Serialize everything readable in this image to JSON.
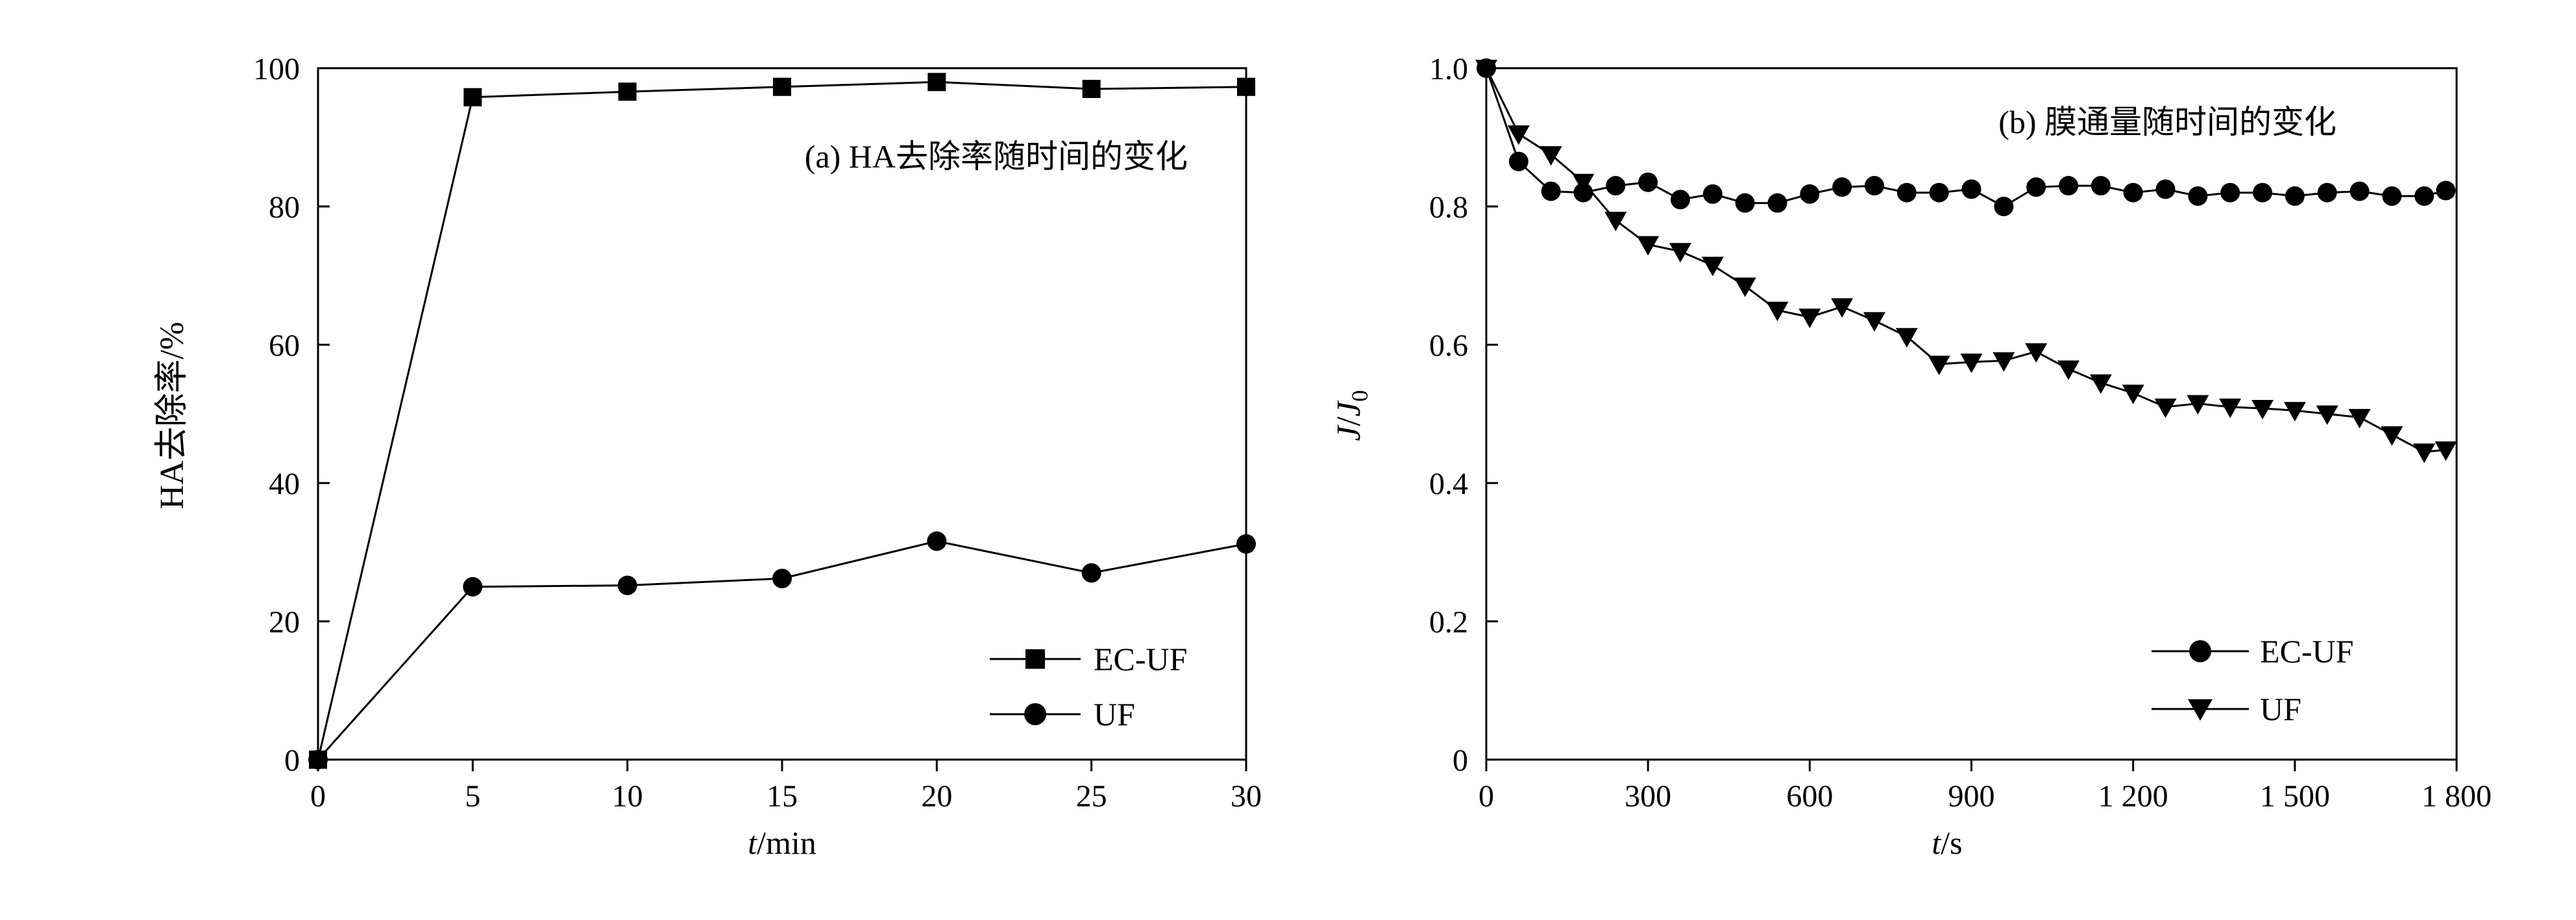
{
  "chart_data": [
    {
      "type": "line",
      "title": "(a) HA去除率随时间的变化",
      "xlabel_italic": "t",
      "xlabel_unit": "/min",
      "ylabel": "HA去除率/%",
      "xlim": [
        0,
        30
      ],
      "ylim": [
        0,
        100
      ],
      "xticks": [
        0,
        5,
        10,
        15,
        20,
        25,
        30
      ],
      "yticks": [
        0,
        20,
        40,
        60,
        80,
        100
      ],
      "xtick_labels": [
        "0",
        "5",
        "10",
        "15",
        "20",
        "25",
        "30"
      ],
      "ytick_labels": [
        "0",
        "20",
        "40",
        "60",
        "80",
        "100"
      ],
      "grid": false,
      "legend_position": "bottom-right",
      "series": [
        {
          "name": "EC-UF",
          "marker": "square",
          "x": [
            0,
            5,
            10,
            15,
            20,
            25,
            30
          ],
          "y": [
            0,
            95.8,
            96.6,
            97.3,
            98.0,
            97.0,
            97.3
          ]
        },
        {
          "name": "UF",
          "marker": "circle",
          "x": [
            0,
            5,
            10,
            15,
            20,
            25,
            30
          ],
          "y": [
            0,
            25.0,
            25.2,
            26.2,
            31.6,
            27.0,
            31.2
          ]
        }
      ]
    },
    {
      "type": "line",
      "title": "(b) 膜通量随时间的变化",
      "xlabel_italic": "t",
      "xlabel_unit": "/s",
      "ylabel_italic": "J",
      "ylabel_sep": "/",
      "ylabel_sub_base": "J",
      "ylabel_sub": "0",
      "xlim": [
        0,
        1800
      ],
      "ylim": [
        0,
        1.0
      ],
      "xticks": [
        0,
        300,
        600,
        900,
        1200,
        1500,
        1800
      ],
      "yticks": [
        0,
        0.2,
        0.4,
        0.6,
        0.8,
        1.0
      ],
      "xtick_labels": [
        "0",
        "300",
        "600",
        "900",
        "1 200",
        "1 500",
        "1 800"
      ],
      "ytick_labels": [
        "0",
        "0.2",
        "0.4",
        "0.6",
        "0.8",
        "1.0"
      ],
      "grid": false,
      "legend_position": "bottom-right",
      "series": [
        {
          "name": "EC-UF",
          "marker": "circle",
          "x": [
            0,
            60,
            120,
            180,
            240,
            300,
            360,
            420,
            480,
            540,
            600,
            660,
            720,
            780,
            840,
            900,
            960,
            1020,
            1080,
            1140,
            1200,
            1260,
            1320,
            1380,
            1440,
            1500,
            1560,
            1620,
            1680,
            1740,
            1780
          ],
          "y": [
            1.0,
            0.865,
            0.822,
            0.82,
            0.83,
            0.835,
            0.81,
            0.818,
            0.805,
            0.805,
            0.818,
            0.828,
            0.83,
            0.82,
            0.82,
            0.825,
            0.8,
            0.828,
            0.83,
            0.83,
            0.82,
            0.825,
            0.815,
            0.82,
            0.82,
            0.815,
            0.82,
            0.822,
            0.815,
            0.815,
            0.823
          ]
        },
        {
          "name": "UF",
          "marker": "triangle-down",
          "x": [
            0,
            60,
            120,
            180,
            240,
            300,
            360,
            420,
            480,
            540,
            600,
            660,
            720,
            780,
            840,
            900,
            960,
            1020,
            1080,
            1140,
            1200,
            1260,
            1320,
            1380,
            1440,
            1500,
            1560,
            1620,
            1680,
            1740,
            1780
          ],
          "y": [
            1.0,
            0.905,
            0.875,
            0.835,
            0.78,
            0.745,
            0.735,
            0.715,
            0.685,
            0.65,
            0.64,
            0.655,
            0.635,
            0.612,
            0.572,
            0.575,
            0.577,
            0.59,
            0.565,
            0.545,
            0.53,
            0.51,
            0.515,
            0.51,
            0.508,
            0.505,
            0.5,
            0.495,
            0.47,
            0.445,
            0.448
          ]
        }
      ]
    }
  ]
}
